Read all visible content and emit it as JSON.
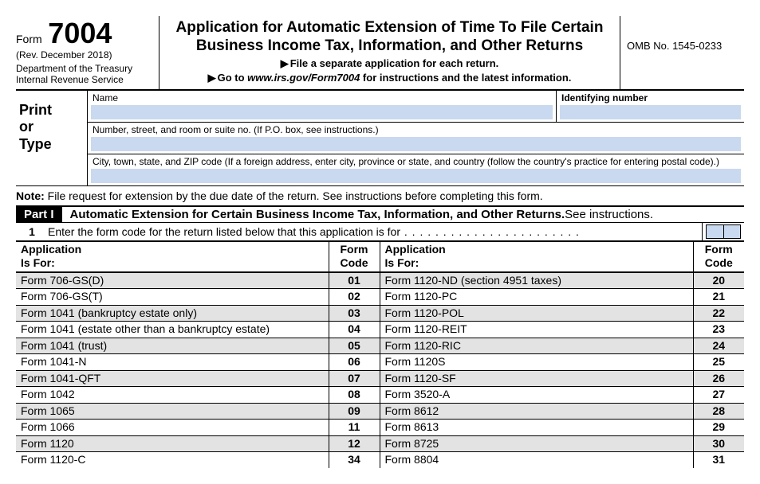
{
  "header": {
    "form_label": "Form",
    "form_number": "7004",
    "rev_date": "(Rev. December 2018)",
    "dept": "Department of the Treasury\nInternal Revenue Service",
    "title": "Application for Automatic Extension of Time To File Certain Business Income Tax, Information, and Other Returns",
    "sub1_prefix": "▶",
    "sub1": "File a separate application for each return.",
    "sub2_prefix": "▶",
    "sub2_a": "Go to",
    "sub2_url": "www.irs.gov/Form7004",
    "sub2_b": "for instructions and the latest information.",
    "omb": "OMB No. 1545-0233"
  },
  "print_or_type": {
    "label": "Print\nor\nType",
    "name_label": "Name",
    "id_label": "Identifying number",
    "addr_label": "Number, street, and room or suite no. (If P.O. box, see instructions.)",
    "city_label": "City, town, state, and ZIP code (If a foreign address, enter city, province or state, and country (follow the country's practice for entering postal code).)"
  },
  "note": {
    "bold": "Note:",
    "text": "File request for extension by the due date of the return. See instructions before completing this form."
  },
  "part1": {
    "badge": "Part I",
    "title": "Automatic Extension for Certain Business Income Tax, Information, and Other Returns.",
    "see": " See instructions."
  },
  "line1": {
    "num": "1",
    "text": "Enter the form code for the return listed below that this application is for"
  },
  "table": {
    "header": {
      "app": "Application\nIs For:",
      "code": "Form\nCode"
    },
    "left": [
      {
        "app": "Form 706-GS(D)",
        "code": "01"
      },
      {
        "app": "Form 706-GS(T)",
        "code": "02"
      },
      {
        "app": "Form 1041 (bankruptcy estate only)",
        "code": "03"
      },
      {
        "app": "Form 1041 (estate other than a bankruptcy estate)",
        "code": "04"
      },
      {
        "app": "Form 1041 (trust)",
        "code": "05"
      },
      {
        "app": "Form 1041-N",
        "code": "06"
      },
      {
        "app": "Form 1041-QFT",
        "code": "07"
      },
      {
        "app": "Form 1042",
        "code": "08"
      },
      {
        "app": "Form 1065",
        "code": "09"
      },
      {
        "app": "Form 1066",
        "code": "11"
      },
      {
        "app": "Form 1120",
        "code": "12"
      },
      {
        "app": "Form 1120-C",
        "code": "34"
      }
    ],
    "right": [
      {
        "app": "Form 1120-ND (section 4951 taxes)",
        "code": "20"
      },
      {
        "app": "Form 1120-PC",
        "code": "21"
      },
      {
        "app": "Form 1120-POL",
        "code": "22"
      },
      {
        "app": "Form 1120-REIT",
        "code": "23"
      },
      {
        "app": "Form 1120-RIC",
        "code": "24"
      },
      {
        "app": "Form 1120S",
        "code": "25"
      },
      {
        "app": "Form 1120-SF",
        "code": "26"
      },
      {
        "app": "Form 3520-A",
        "code": "27"
      },
      {
        "app": "Form 8612",
        "code": "28"
      },
      {
        "app": "Form 8613",
        "code": "29"
      },
      {
        "app": "Form 8725",
        "code": "30"
      },
      {
        "app": "Form 8804",
        "code": "31"
      }
    ]
  },
  "colors": {
    "fill_field": "#c9d9ef",
    "row_shade": "#e3e3e3",
    "text": "#000000",
    "bg": "#ffffff"
  }
}
